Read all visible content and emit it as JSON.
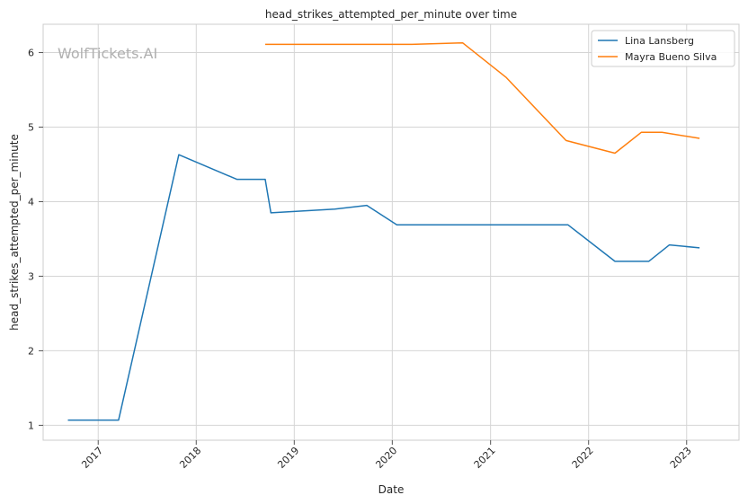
{
  "chart_data": {
    "type": "line",
    "title": "head_strikes_attempted_per_minute over time",
    "xlabel": "Date",
    "ylabel": "head_strikes_attempted_per_minute",
    "watermark": "WolfTickets.AI",
    "xlim": [
      "2016-06-10",
      "2023-07-15"
    ],
    "ylim": [
      0.8,
      6.38
    ],
    "x_ticks": [
      "2017-01-01",
      "2018-01-01",
      "2019-01-01",
      "2020-01-01",
      "2021-01-01",
      "2022-01-01",
      "2023-01-01"
    ],
    "x_tick_labels": [
      "2017",
      "2018",
      "2019",
      "2020",
      "2021",
      "2022",
      "2023"
    ],
    "y_ticks": [
      1,
      2,
      3,
      4,
      5,
      6
    ],
    "y_tick_labels": [
      "1",
      "2",
      "3",
      "4",
      "5",
      "6"
    ],
    "grid": true,
    "legend_position": "top-right",
    "series": [
      {
        "name": "Lina Lansberg",
        "color": "#1f77b4",
        "points": [
          [
            "2016-09-10",
            1.07
          ],
          [
            "2017-03-18",
            1.07
          ],
          [
            "2017-10-28",
            4.63
          ],
          [
            "2018-06-01",
            4.3
          ],
          [
            "2018-09-15",
            4.3
          ],
          [
            "2018-10-06",
            3.85
          ],
          [
            "2019-06-01",
            3.9
          ],
          [
            "2019-09-28",
            3.95
          ],
          [
            "2020-01-18",
            3.69
          ],
          [
            "2021-10-16",
            3.69
          ],
          [
            "2022-04-09",
            3.2
          ],
          [
            "2022-08-13",
            3.2
          ],
          [
            "2022-10-29",
            3.42
          ],
          [
            "2023-02-18",
            3.38
          ]
        ]
      },
      {
        "name": "Mayra Bueno Silva",
        "color": "#ff7f0e",
        "points": [
          [
            "2018-09-15",
            6.11
          ],
          [
            "2020-03-14",
            6.11
          ],
          [
            "2020-09-19",
            6.13
          ],
          [
            "2021-02-27",
            5.67
          ],
          [
            "2021-10-09",
            4.82
          ],
          [
            "2022-04-09",
            4.65
          ],
          [
            "2022-07-16",
            4.93
          ],
          [
            "2022-10-01",
            4.93
          ],
          [
            "2023-02-18",
            4.85
          ]
        ]
      }
    ]
  }
}
